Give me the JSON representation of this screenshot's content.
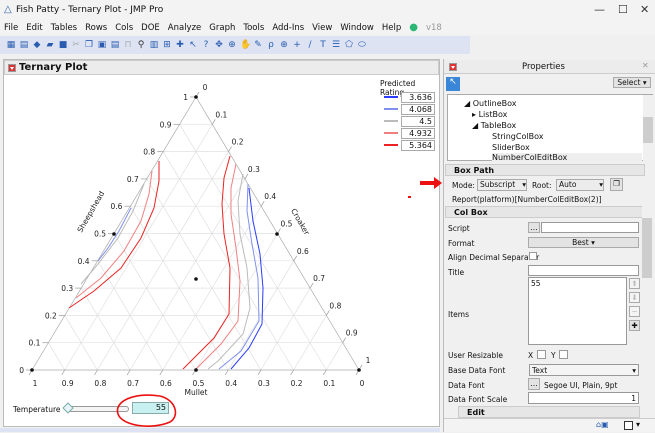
{
  "window": {
    "title": "Fish Patty - Ternary Plot - JMP Pro",
    "minimize": "—",
    "maximize": "☐",
    "close": "✕"
  },
  "menu": [
    "File",
    "Edit",
    "Tables",
    "Rows",
    "Cols",
    "DOE",
    "Analyze",
    "Graph",
    "Tools",
    "Add-Ins",
    "View",
    "Window",
    "Help"
  ],
  "version": "v18",
  "report": {
    "title": "Ternary Plot",
    "legend": {
      "title": "Predicted Rating",
      "items": [
        {
          "value": "3.636",
          "color": "#2a3cff"
        },
        {
          "value": "4.068",
          "color": "#8090ee"
        },
        {
          "value": "4.5",
          "color": "#bbbbbb"
        },
        {
          "value": "4.932",
          "color": "#f08080"
        },
        {
          "value": "5.364",
          "color": "#ee2222"
        }
      ]
    },
    "axes": {
      "left": "Sheepshead",
      "right": "Croaker",
      "bottom": "Mullet"
    },
    "ticks": [
      "0",
      "0.1",
      "0.2",
      "0.3",
      "0.4",
      "0.5",
      "0.6",
      "0.7",
      "0.8",
      "0.9",
      "1"
    ],
    "slider": {
      "label": "Temperature",
      "value": "55",
      "fraction": 0.95
    }
  },
  "properties": {
    "title": "Properties",
    "select_label": "Select",
    "tree": [
      "OutlineBox",
      "ListBox",
      "TableBox",
      "StringColBox",
      "SliderBox",
      "NumberColEditBox"
    ],
    "box_path": {
      "header": "Box Path",
      "mode_label": "Mode:",
      "mode": "Subscript",
      "root_label": "Root:",
      "root": "Auto",
      "path": "Report(platform)[NumberColEditBox(2)]"
    },
    "col_box": {
      "header": "Col Box",
      "script": "Script",
      "format": "Format",
      "format_value": "Best",
      "align": "Align Decimal Separator",
      "title": "Title",
      "items": "Items",
      "items_value": "55",
      "user_resizable": "User Resizable",
      "x": "X",
      "y": "Y",
      "base_font": "Base Data Font",
      "base_font_value": "Text",
      "data_font": "Data Font",
      "data_font_value": "Segoe UI, Plain, 9pt",
      "font_scale": "Data Font Scale",
      "font_scale_value": "1"
    },
    "edit_header": "Edit"
  }
}
